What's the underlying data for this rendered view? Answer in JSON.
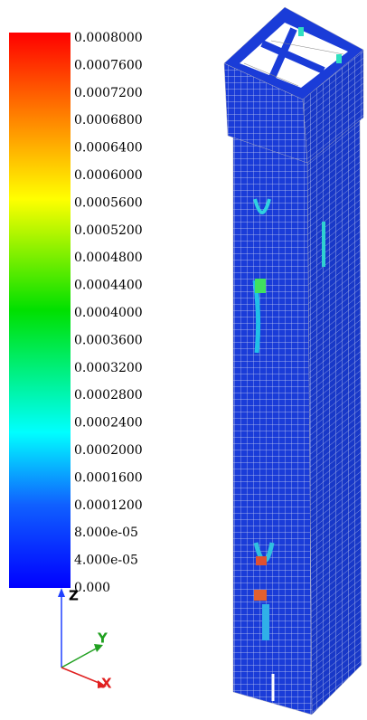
{
  "legend": {
    "labels": [
      "0.0008000",
      "0.0007600",
      "0.0007200",
      "0.0006800",
      "0.0006400",
      "0.0006000",
      "0.0005600",
      "0.0005200",
      "0.0004800",
      "0.0004400",
      "0.0004000",
      "0.0003600",
      "0.0003200",
      "0.0002800",
      "0.0002400",
      "0.0002000",
      "0.0001600",
      "0.0001200",
      "8.000e-05",
      "4.000e-05",
      "0.000"
    ]
  },
  "triad": {
    "x": "X",
    "y": "Y",
    "z": "Z"
  }
}
